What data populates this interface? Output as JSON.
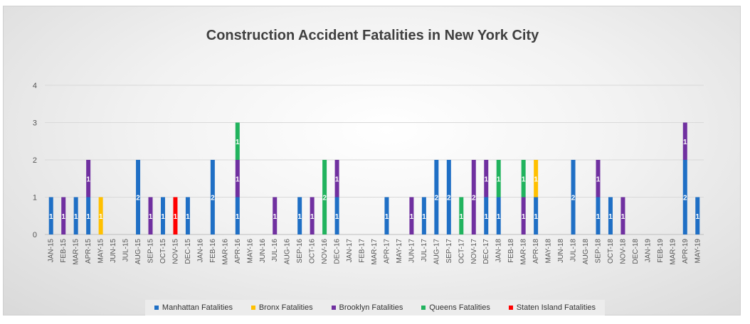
{
  "chart_data": {
    "type": "bar",
    "stacked": true,
    "title": "Construction Accident Fatalities in New York City",
    "ylim": [
      0,
      4
    ],
    "yticks": [
      0,
      1,
      2,
      3,
      4
    ],
    "grid": true,
    "legend_position": "bottom",
    "categories": [
      "JAN-15",
      "FEB-15",
      "MAR-15",
      "APR-15",
      "MAY-15",
      "JUN-15",
      "JUL-15",
      "AUG-15",
      "SEP-15",
      "OCT-15",
      "NOV-15",
      "DEC-15",
      "JAN-16",
      "FEB-16",
      "MAR-16",
      "APR-16",
      "MAY-16",
      "JUN-16",
      "JUL-16",
      "AUG-16",
      "SEP-16",
      "OCT-16",
      "NOV-16",
      "DEC-16",
      "JAN-17",
      "FEB-17",
      "MAR-17",
      "APR-17",
      "MAY-17",
      "JUN-17",
      "JUL-17",
      "AUG-17",
      "SEP-17",
      "OCT-17",
      "NOV-17",
      "DEC-17",
      "JAN-18",
      "FEB-18",
      "MAR-18",
      "APR-18",
      "MAY-18",
      "JUN-18",
      "JUL-18",
      "AUG-18",
      "SEP-18",
      "OCT-18",
      "NOV-18",
      "DEC-18",
      "JAN-19",
      "FEB-19",
      "MAR-19",
      "APR-19",
      "MAY-19"
    ],
    "series": [
      {
        "name": "Manhattan Fatalities",
        "color": "#1f6fc5",
        "values": [
          1,
          0,
          1,
          1,
          0,
          0,
          0,
          2,
          0,
          1,
          0,
          1,
          0,
          2,
          0,
          1,
          0,
          0,
          0,
          0,
          1,
          0,
          0,
          1,
          0,
          0,
          0,
          1,
          0,
          0,
          1,
          2,
          2,
          0,
          0,
          1,
          1,
          0,
          0,
          1,
          0,
          0,
          2,
          0,
          1,
          1,
          0,
          0,
          0,
          0,
          0,
          2,
          1
        ]
      },
      {
        "name": "Bronx Fatalities",
        "color": "#ffc000",
        "values": [
          0,
          0,
          0,
          0,
          1,
          0,
          0,
          0,
          0,
          0,
          0,
          0,
          0,
          0,
          0,
          0,
          0,
          0,
          0,
          0,
          0,
          0,
          0,
          0,
          0,
          0,
          0,
          0,
          0,
          0,
          0,
          0,
          0,
          0,
          0,
          0,
          0,
          0,
          0,
          1,
          0,
          0,
          0,
          0,
          0,
          0,
          0,
          0,
          0,
          0,
          0,
          0,
          0
        ]
      },
      {
        "name": "Brooklyn Fatalities",
        "color": "#7030a0",
        "values": [
          0,
          1,
          0,
          1,
          0,
          0,
          0,
          0,
          1,
          0,
          0,
          0,
          0,
          0,
          0,
          1,
          0,
          0,
          1,
          0,
          0,
          1,
          0,
          1,
          0,
          0,
          0,
          0,
          0,
          1,
          0,
          0,
          0,
          0,
          2,
          1,
          0,
          0,
          1,
          0,
          0,
          0,
          0,
          0,
          1,
          0,
          1,
          0,
          0,
          0,
          0,
          1,
          0
        ]
      },
      {
        "name": "Queens Fatalities",
        "color": "#21b35e",
        "values": [
          0,
          0,
          0,
          0,
          0,
          0,
          0,
          0,
          0,
          0,
          0,
          0,
          0,
          0,
          0,
          1,
          0,
          0,
          0,
          0,
          0,
          0,
          2,
          0,
          0,
          0,
          0,
          0,
          0,
          0,
          0,
          0,
          0,
          1,
          0,
          0,
          1,
          0,
          1,
          0,
          0,
          0,
          0,
          0,
          0,
          0,
          0,
          0,
          0,
          0,
          0,
          0,
          0
        ]
      },
      {
        "name": "Staten Island Fatalities",
        "color": "#ff0000",
        "values": [
          0,
          0,
          0,
          0,
          0,
          0,
          0,
          0,
          0,
          0,
          1,
          0,
          0,
          0,
          0,
          0,
          0,
          0,
          0,
          0,
          0,
          0,
          0,
          0,
          0,
          0,
          0,
          0,
          0,
          0,
          0,
          0,
          0,
          0,
          0,
          0,
          0,
          0,
          0,
          0,
          0,
          0,
          0,
          0,
          0,
          0,
          0,
          0,
          0,
          0,
          0,
          0,
          0
        ]
      }
    ]
  }
}
